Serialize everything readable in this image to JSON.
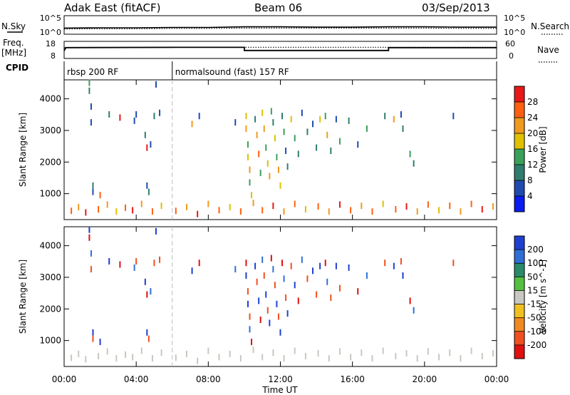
{
  "header": {
    "station": "Adak East (fitACF)",
    "beam": "Beam 06",
    "date": "03/Sep/2013"
  },
  "noise_panel": {
    "left_label": "N.Sky",
    "right_label": "N.Search",
    "left_ticks": [
      "10^5",
      "10^0"
    ],
    "right_ticks": [
      "10^5",
      "10^0"
    ]
  },
  "freq_panel": {
    "left_label_line1": "Freq.",
    "left_label_line2": "[MHz]",
    "right_label": "Nave",
    "left_ticks": [
      "18",
      "8"
    ],
    "right_ticks": [
      "60",
      "0"
    ]
  },
  "cpid": {
    "label": "CPID",
    "programs": [
      {
        "name": "rbsp 200 RF",
        "start_hour": 0
      },
      {
        "name": "normalsound (fast) 157 RF",
        "start_hour": 6
      }
    ]
  },
  "time_axis": {
    "label": "Time UT",
    "ticks": [
      "00:00",
      "04:00",
      "08:00",
      "12:00",
      "16:00",
      "20:00",
      "00:00"
    ]
  },
  "range_axis": {
    "label": "Slant Range [km]",
    "ticks": [
      "1000",
      "2000",
      "3000",
      "4000"
    ]
  },
  "power_scale": {
    "label": "Power [dB]",
    "ticks": [
      "4",
      "8",
      "12",
      "16",
      "20",
      "24",
      "28"
    ],
    "colors": [
      "#0a1cf0",
      "#1f4ab0",
      "#2f7d6e",
      "#3aa05a",
      "#e0c000",
      "#f09a1e",
      "#ff6010",
      "#e81818"
    ]
  },
  "velocity_scale": {
    "label": "Velocity [m s^-1]",
    "ticks": [
      "200",
      "100",
      "50",
      "15",
      "-15",
      "-50",
      "-100",
      "-200"
    ],
    "colors": [
      "#1f3fd0",
      "#2f6fd8",
      "#2a8a6a",
      "#55c040",
      "#c8c8c0",
      "#f0c020",
      "#f08a20",
      "#f05020",
      "#e01010"
    ]
  },
  "chart_data": [
    {
      "type": "line",
      "panel": "noise",
      "x_unit": "hours UT",
      "xlim": [
        0,
        24
      ],
      "series": [
        {
          "name": "N.Sky",
          "x": [
            0,
            2,
            4,
            6,
            8,
            10,
            12,
            14,
            16,
            18,
            20,
            22,
            24
          ],
          "y": [
            1.5,
            1.6,
            1.6,
            1.7,
            1.7,
            1.9,
            1.9,
            1.8,
            1.8,
            1.9,
            1.9,
            1.8,
            1.8
          ]
        },
        {
          "name": "N.Search",
          "x": [
            0,
            2,
            4,
            6,
            8,
            10,
            12,
            14,
            16,
            18,
            20,
            22,
            24
          ],
          "y": [
            1.2,
            1.3,
            1.3,
            1.4,
            1.4,
            1.5,
            1.5,
            1.5,
            1.5,
            1.5,
            1.5,
            1.4,
            1.4
          ]
        }
      ],
      "y_scale": "log10",
      "ylim_exp": [
        0,
        5
      ]
    },
    {
      "type": "line",
      "panel": "frequency",
      "x_unit": "hours UT",
      "xlim": [
        0,
        24
      ],
      "ylim": [
        8,
        18
      ],
      "series": [
        {
          "name": "Freq.",
          "x": [
            0,
            0.1,
            6,
            10,
            10,
            18,
            18,
            24
          ],
          "y": [
            12.5,
            14.6,
            14.8,
            14.8,
            12.6,
            12.6,
            14.6,
            14.6
          ]
        },
        {
          "name": "Nave",
          "x": [
            0,
            6,
            6,
            10,
            10,
            24
          ],
          "y": [
            40,
            40,
            42,
            42,
            41,
            41
          ]
        }
      ],
      "y2lim": [
        0,
        60
      ]
    },
    {
      "type": "scatter",
      "panel": "power",
      "x_unit": "hours UT",
      "xlim": [
        0,
        24
      ],
      "ylim": [
        180,
        4600
      ],
      "clim": [
        0,
        32
      ],
      "points": [
        [
          1.4,
          4450,
          12
        ],
        [
          1.4,
          4200,
          8
        ],
        [
          1.5,
          3700,
          4
        ],
        [
          1.5,
          3200,
          4
        ],
        [
          1.6,
          1200,
          8
        ],
        [
          1.6,
          1000,
          4
        ],
        [
          2.0,
          900,
          24
        ],
        [
          2.5,
          3450,
          8
        ],
        [
          3.1,
          3350,
          28
        ],
        [
          3.9,
          3250,
          4
        ],
        [
          4.0,
          3450,
          4
        ],
        [
          4.5,
          2800,
          8
        ],
        [
          4.6,
          2400,
          28
        ],
        [
          4.6,
          1200,
          4
        ],
        [
          4.7,
          1000,
          8
        ],
        [
          4.8,
          2500,
          4
        ],
        [
          5.0,
          3400,
          8
        ],
        [
          5.1,
          4400,
          4
        ],
        [
          5.3,
          3500,
          4
        ],
        [
          7.1,
          3150,
          20
        ],
        [
          7.5,
          3400,
          4
        ],
        [
          9.5,
          3200,
          4
        ],
        [
          10.1,
          3400,
          16
        ],
        [
          10.1,
          3000,
          20
        ],
        [
          10.2,
          2500,
          12
        ],
        [
          10.2,
          2100,
          16
        ],
        [
          10.3,
          1700,
          20
        ],
        [
          10.3,
          1300,
          12
        ],
        [
          10.4,
          900,
          16
        ],
        [
          10.6,
          3300,
          8
        ],
        [
          10.7,
          2800,
          20
        ],
        [
          10.8,
          2200,
          24
        ],
        [
          10.9,
          1600,
          12
        ],
        [
          11.0,
          3500,
          16
        ],
        [
          11.1,
          3000,
          20
        ],
        [
          11.2,
          2400,
          12
        ],
        [
          11.3,
          1900,
          16
        ],
        [
          11.4,
          1500,
          20
        ],
        [
          11.5,
          3550,
          12
        ],
        [
          11.6,
          3200,
          8
        ],
        [
          11.7,
          2700,
          16
        ],
        [
          11.8,
          2100,
          12
        ],
        [
          11.9,
          1700,
          20
        ],
        [
          12.0,
          1200,
          16
        ],
        [
          12.1,
          3400,
          8
        ],
        [
          12.2,
          2900,
          12
        ],
        [
          12.3,
          2300,
          4
        ],
        [
          12.4,
          1800,
          8
        ],
        [
          12.6,
          3300,
          16
        ],
        [
          12.8,
          2700,
          12
        ],
        [
          13.0,
          2200,
          8
        ],
        [
          13.2,
          3500,
          4
        ],
        [
          13.5,
          2900,
          8
        ],
        [
          13.8,
          3150,
          4
        ],
        [
          14.0,
          2400,
          8
        ],
        [
          14.2,
          3300,
          16
        ],
        [
          14.5,
          3400,
          12
        ],
        [
          14.6,
          2800,
          20
        ],
        [
          14.8,
          2300,
          8
        ],
        [
          15.1,
          3300,
          4
        ],
        [
          15.3,
          2600,
          12
        ],
        [
          15.8,
          3250,
          8
        ],
        [
          16.3,
          2500,
          4
        ],
        [
          16.8,
          3000,
          12
        ],
        [
          17.8,
          3400,
          8
        ],
        [
          18.3,
          3300,
          20
        ],
        [
          18.7,
          3450,
          4
        ],
        [
          18.8,
          3000,
          8
        ],
        [
          19.2,
          2200,
          12
        ],
        [
          19.4,
          1900,
          8
        ],
        [
          21.6,
          3400,
          4
        ],
        [
          0.4,
          400,
          24
        ],
        [
          0.8,
          520,
          20
        ],
        [
          1.2,
          350,
          28
        ],
        [
          1.9,
          450,
          24
        ],
        [
          2.4,
          600,
          20
        ],
        [
          2.9,
          380,
          16
        ],
        [
          3.4,
          500,
          24
        ],
        [
          3.8,
          420,
          28
        ],
        [
          4.3,
          620,
          20
        ],
        [
          4.9,
          380,
          24
        ],
        [
          5.4,
          560,
          16
        ],
        [
          6.2,
          400,
          24
        ],
        [
          6.8,
          520,
          20
        ],
        [
          7.4,
          300,
          28
        ],
        [
          8.0,
          620,
          20
        ],
        [
          8.6,
          420,
          24
        ],
        [
          9.2,
          520,
          16
        ],
        [
          9.8,
          380,
          24
        ],
        [
          10.5,
          650,
          20
        ],
        [
          11.0,
          420,
          24
        ],
        [
          11.6,
          560,
          28
        ],
        [
          12.2,
          380,
          20
        ],
        [
          12.8,
          620,
          24
        ],
        [
          13.4,
          450,
          16
        ],
        [
          14.1,
          540,
          24
        ],
        [
          14.7,
          380,
          20
        ],
        [
          15.3,
          600,
          28
        ],
        [
          15.9,
          420,
          24
        ],
        [
          16.5,
          560,
          20
        ],
        [
          17.1,
          380,
          24
        ],
        [
          17.7,
          620,
          16
        ],
        [
          18.4,
          450,
          24
        ],
        [
          19.0,
          540,
          28
        ],
        [
          19.6,
          380,
          20
        ],
        [
          20.2,
          600,
          24
        ],
        [
          20.8,
          420,
          16
        ],
        [
          21.4,
          560,
          24
        ],
        [
          22.0,
          380,
          20
        ],
        [
          22.6,
          620,
          24
        ],
        [
          23.2,
          450,
          28
        ],
        [
          23.8,
          540,
          20
        ]
      ]
    },
    {
      "type": "scatter",
      "panel": "velocity",
      "x_unit": "hours UT",
      "xlim": [
        0,
        24
      ],
      "ylim": [
        180,
        4600
      ],
      "clim": [
        -250,
        250
      ],
      "points": [
        [
          1.4,
          4450,
          200
        ],
        [
          1.4,
          4200,
          -200
        ],
        [
          1.5,
          3700,
          100
        ],
        [
          1.5,
          3200,
          -100
        ],
        [
          1.6,
          1200,
          150
        ],
        [
          1.6,
          1000,
          -150
        ],
        [
          2.0,
          900,
          200
        ],
        [
          2.5,
          3450,
          150
        ],
        [
          3.1,
          3350,
          -200
        ],
        [
          3.9,
          3250,
          100
        ],
        [
          4.0,
          3450,
          -150
        ],
        [
          4.5,
          2800,
          200
        ],
        [
          4.6,
          2400,
          -200
        ],
        [
          4.6,
          1200,
          150
        ],
        [
          4.7,
          1000,
          -100
        ],
        [
          4.8,
          2500,
          100
        ],
        [
          5.0,
          3400,
          -150
        ],
        [
          5.1,
          4400,
          200
        ],
        [
          5.3,
          3500,
          -100
        ],
        [
          7.1,
          3150,
          150
        ],
        [
          7.5,
          3400,
          -200
        ],
        [
          9.5,
          3200,
          100
        ],
        [
          10.1,
          3400,
          -200
        ],
        [
          10.1,
          3000,
          150
        ],
        [
          10.2,
          2500,
          -150
        ],
        [
          10.2,
          2100,
          200
        ],
        [
          10.3,
          1700,
          -100
        ],
        [
          10.3,
          1300,
          100
        ],
        [
          10.4,
          900,
          -200
        ],
        [
          10.6,
          3300,
          150
        ],
        [
          10.7,
          2800,
          -150
        ],
        [
          10.8,
          2200,
          200
        ],
        [
          10.9,
          1600,
          -200
        ],
        [
          11.0,
          3500,
          100
        ],
        [
          11.1,
          3000,
          -100
        ],
        [
          11.2,
          2400,
          150
        ],
        [
          11.3,
          1900,
          -150
        ],
        [
          11.4,
          1500,
          200
        ],
        [
          11.5,
          3550,
          -200
        ],
        [
          11.6,
          3200,
          100
        ],
        [
          11.7,
          2700,
          -100
        ],
        [
          11.8,
          2100,
          150
        ],
        [
          11.9,
          1700,
          -150
        ],
        [
          12.0,
          1200,
          200
        ],
        [
          12.1,
          3400,
          -200
        ],
        [
          12.2,
          2900,
          100
        ],
        [
          12.3,
          2300,
          -100
        ],
        [
          12.4,
          1800,
          150
        ],
        [
          12.6,
          3300,
          -150
        ],
        [
          12.8,
          2700,
          200
        ],
        [
          13.0,
          2200,
          -200
        ],
        [
          13.2,
          3500,
          100
        ],
        [
          13.5,
          2900,
          -100
        ],
        [
          13.8,
          3150,
          150
        ],
        [
          14.0,
          2400,
          -150
        ],
        [
          14.2,
          3300,
          200
        ],
        [
          14.5,
          3400,
          -200
        ],
        [
          14.6,
          2800,
          100
        ],
        [
          14.8,
          2300,
          -100
        ],
        [
          15.1,
          3300,
          150
        ],
        [
          15.3,
          2600,
          -150
        ],
        [
          15.8,
          3250,
          200
        ],
        [
          16.3,
          2500,
          -200
        ],
        [
          16.8,
          3000,
          100
        ],
        [
          17.8,
          3400,
          -100
        ],
        [
          18.3,
          3300,
          150
        ],
        [
          18.7,
          3450,
          -150
        ],
        [
          18.8,
          3000,
          200
        ],
        [
          19.2,
          2200,
          -200
        ],
        [
          19.4,
          1900,
          100
        ],
        [
          21.6,
          3400,
          -100
        ],
        [
          0.4,
          400,
          5
        ],
        [
          0.8,
          520,
          -5
        ],
        [
          1.2,
          350,
          8
        ],
        [
          1.9,
          450,
          -8
        ],
        [
          2.4,
          600,
          5
        ],
        [
          2.9,
          380,
          -5
        ],
        [
          3.4,
          500,
          8
        ],
        [
          3.8,
          420,
          -8
        ],
        [
          4.3,
          620,
          5
        ],
        [
          4.9,
          380,
          -5
        ],
        [
          5.4,
          560,
          8
        ],
        [
          6.2,
          400,
          -8
        ],
        [
          6.8,
          520,
          5
        ],
        [
          7.4,
          300,
          -5
        ],
        [
          8.0,
          620,
          8
        ],
        [
          8.6,
          420,
          -8
        ],
        [
          9.2,
          520,
          5
        ],
        [
          9.8,
          380,
          -5
        ],
        [
          10.5,
          650,
          8
        ],
        [
          11.0,
          420,
          -8
        ],
        [
          11.6,
          560,
          5
        ],
        [
          12.2,
          380,
          -5
        ],
        [
          12.8,
          620,
          8
        ],
        [
          13.4,
          450,
          -8
        ],
        [
          14.1,
          540,
          5
        ],
        [
          14.7,
          380,
          -5
        ],
        [
          15.3,
          600,
          8
        ],
        [
          15.9,
          420,
          -8
        ],
        [
          16.5,
          560,
          5
        ],
        [
          17.1,
          380,
          -5
        ],
        [
          17.7,
          620,
          8
        ],
        [
          18.4,
          450,
          -8
        ],
        [
          19.0,
          540,
          5
        ],
        [
          19.6,
          380,
          -5
        ],
        [
          20.2,
          600,
          8
        ],
        [
          20.8,
          420,
          -8
        ],
        [
          21.4,
          560,
          5
        ],
        [
          22.0,
          380,
          -5
        ],
        [
          22.6,
          620,
          8
        ],
        [
          23.2,
          450,
          -8
        ],
        [
          23.8,
          540,
          5
        ]
      ]
    }
  ]
}
